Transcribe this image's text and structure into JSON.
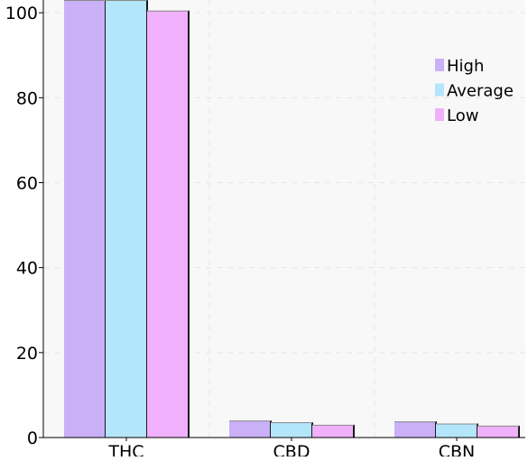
{
  "chart_data": {
    "type": "bar",
    "categories": [
      "THC",
      "CBD",
      "CBN"
    ],
    "series": [
      {
        "name": "High",
        "values": [
          104,
          4.0,
          3.8
        ],
        "color": "#c9b0f7"
      },
      {
        "name": "Average",
        "values": [
          104,
          3.6,
          3.3
        ],
        "color": "#b3e5fb"
      },
      {
        "name": "Low",
        "values": [
          100.5,
          3.0,
          2.8
        ],
        "color": "#f0b0fb"
      }
    ],
    "ylim": [
      0,
      103
    ],
    "yticks": [
      "0",
      "20",
      "40",
      "60",
      "80",
      "100"
    ],
    "grid": true,
    "legend_position": "top-right",
    "colors": {
      "plot_background": "#f8f8f8",
      "grid": "#e6e6e6",
      "axis": "#000000",
      "bar_edge": "#1a1a1a"
    }
  }
}
